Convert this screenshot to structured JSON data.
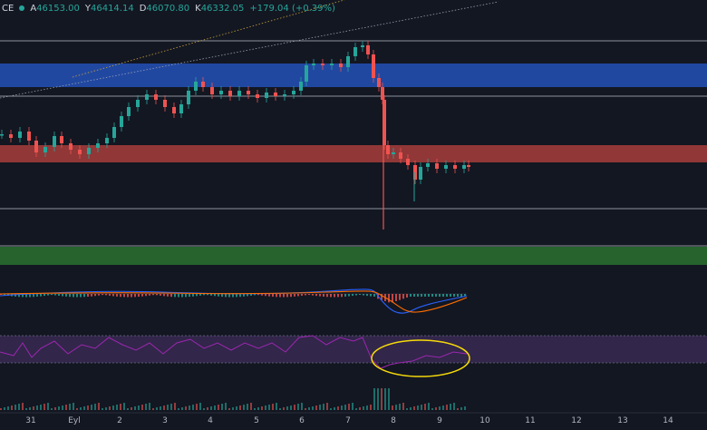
{
  "header": {
    "symbol_fragment": "CE",
    "open_label": "A",
    "open_value": "46153.00",
    "high_label": "Y",
    "high_value": "46414.14",
    "low_label": "D",
    "low_value": "46070.80",
    "close_label": "K",
    "close_value": "46332.05",
    "change": "+179.04 (+0.39%)"
  },
  "x_axis": {
    "ticks": [
      "31",
      "Eyl",
      "2",
      "3",
      "4",
      "5",
      "6",
      "7",
      "8",
      "9",
      "10",
      "11",
      "12",
      "13",
      "14"
    ]
  },
  "zones": {
    "resistance_color": "#2451b7",
    "support_color": "#b2403d",
    "lower_support_color": "#2e7d32"
  },
  "colors": {
    "bull": "#26a69a",
    "bear": "#ef5350",
    "rsi_line": "#9c27b0",
    "rsi_band": "#3b2a55",
    "annotation": "#f5d90a",
    "macd": "#2962ff",
    "signal": "#ff6d00"
  },
  "annotation": {
    "shape": "circled-ellipse",
    "target": "rsi-recent-area"
  }
}
